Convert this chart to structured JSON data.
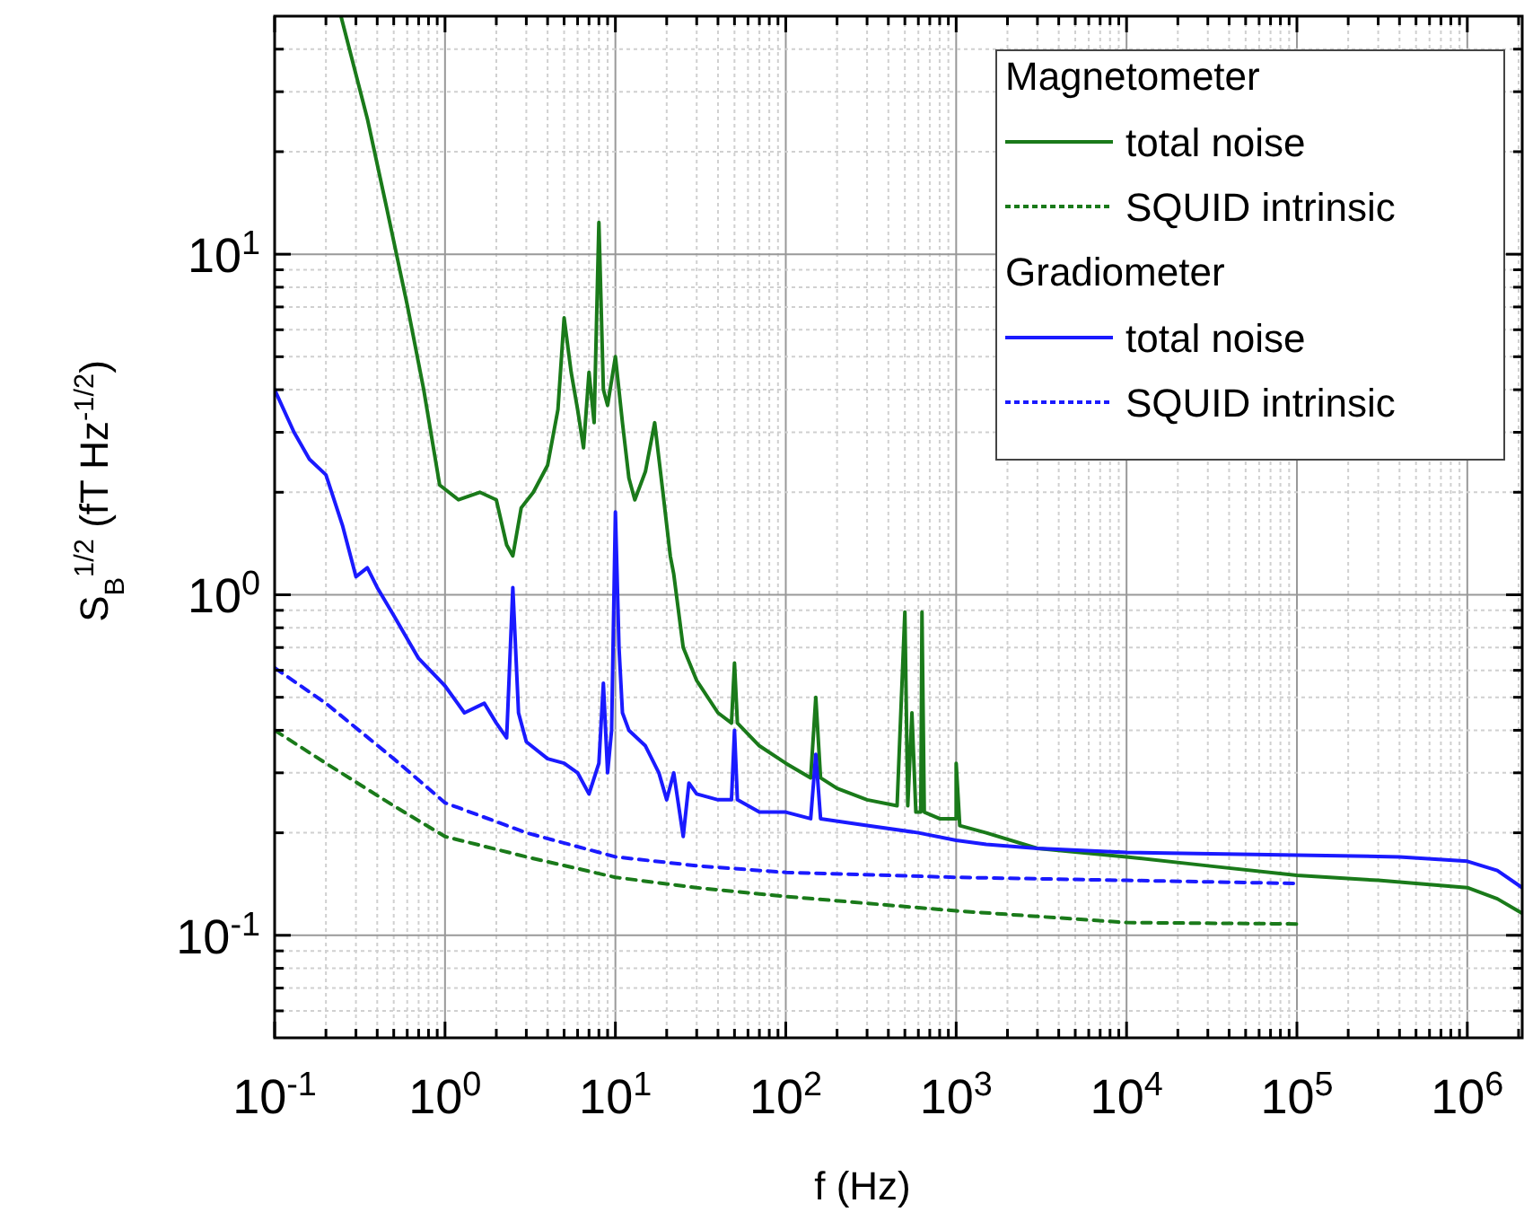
{
  "chart_data": {
    "type": "line",
    "xlabel": "f (Hz)",
    "ylabel": "S$_{B}$$^{1/2}$ (fT Hz$^{-1/2}$)",
    "log": "xy",
    "grid": true,
    "legend": "top right",
    "annotations": [
      "Magnetometer",
      "Gradiometer"
    ],
    "xlim": [
      0.1,
      2100000.0
    ],
    "ylim": [
      0.05,
      50
    ],
    "xticks": [
      {
        "value": 0.1,
        "label": "10$^{-1}$"
      },
      {
        "value": 0.2,
        "label": null
      },
      {
        "value": 0.3,
        "label": null
      },
      {
        "value": 0.4,
        "label": null
      },
      {
        "value": 0.5,
        "label": null
      },
      {
        "value": 0.6,
        "label": null
      },
      {
        "value": 0.7,
        "label": null
      },
      {
        "value": 0.8,
        "label": null
      },
      {
        "value": 0.9,
        "label": null
      },
      {
        "value": 1,
        "label": "10$^{0}$"
      },
      {
        "value": 2,
        "label": null
      },
      {
        "value": 3,
        "label": null
      },
      {
        "value": 4,
        "label": null
      },
      {
        "value": 5,
        "label": null
      },
      {
        "value": 6,
        "label": null
      },
      {
        "value": 7,
        "label": null
      },
      {
        "value": 8,
        "label": null
      },
      {
        "value": 9,
        "label": null
      },
      {
        "value": 10,
        "label": "10$^{1}$"
      },
      {
        "value": 20,
        "label": null
      },
      {
        "value": 30,
        "label": null
      },
      {
        "value": 40,
        "label": null
      },
      {
        "value": 50,
        "label": null
      },
      {
        "value": 60,
        "label": null
      },
      {
        "value": 70,
        "label": null
      },
      {
        "value": 80,
        "label": null
      },
      {
        "value": 90,
        "label": null
      },
      {
        "value": 100,
        "label": "10$^{2}$"
      },
      {
        "value": 200,
        "label": null
      },
      {
        "value": 300,
        "label": null
      },
      {
        "value": 400,
        "label": null
      },
      {
        "value": 500,
        "label": null
      },
      {
        "value": 600,
        "label": null
      },
      {
        "value": 700,
        "label": null
      },
      {
        "value": 800,
        "label": null
      },
      {
        "value": 900,
        "label": null
      },
      {
        "value": 1000,
        "label": "10$^{3}$"
      },
      {
        "value": 2000,
        "label": null
      },
      {
        "value": 3000,
        "label": null
      },
      {
        "value": 4000,
        "label": null
      },
      {
        "value": 5000,
        "label": null
      },
      {
        "value": 6000,
        "label": null
      },
      {
        "value": 7000,
        "label": null
      },
      {
        "value": 8000,
        "label": null
      },
      {
        "value": 9000,
        "label": null
      },
      {
        "value": 10000,
        "label": "10$^{4}$"
      },
      {
        "value": 20000,
        "label": null
      },
      {
        "value": 30000,
        "label": null
      },
      {
        "value": 40000,
        "label": null
      },
      {
        "value": 50000,
        "label": null
      },
      {
        "value": 60000,
        "label": null
      },
      {
        "value": 70000,
        "label": null
      },
      {
        "value": 80000,
        "label": null
      },
      {
        "value": 90000,
        "label": null
      },
      {
        "value": 100000,
        "label": "10$^{5}$"
      },
      {
        "value": 200000,
        "label": null
      },
      {
        "value": 300000,
        "label": null
      },
      {
        "value": 400000,
        "label": null
      },
      {
        "value": 500000,
        "label": null
      },
      {
        "value": 600000,
        "label": null
      },
      {
        "value": 700000,
        "label": null
      },
      {
        "value": 800000,
        "label": null
      },
      {
        "value": 900000,
        "label": null
      },
      {
        "value": 1000000,
        "label": "10$^{6}$"
      },
      {
        "value": 2000000,
        "label": null
      }
    ],
    "yticks": [
      {
        "value": 0.06,
        "label": null
      },
      {
        "value": 0.07,
        "label": null
      },
      {
        "value": 0.08,
        "label": null
      },
      {
        "value": 0.09,
        "label": null
      },
      {
        "value": 0.1,
        "label": "10$^{-1}$"
      },
      {
        "value": 0.2,
        "label": null
      },
      {
        "value": 0.3,
        "label": null
      },
      {
        "value": 0.4,
        "label": null
      },
      {
        "value": 0.5,
        "label": null
      },
      {
        "value": 0.6,
        "label": null
      },
      {
        "value": 0.7,
        "label": null
      },
      {
        "value": 0.8,
        "label": null
      },
      {
        "value": 0.9,
        "label": null
      },
      {
        "value": 1,
        "label": "10$^{0}$"
      },
      {
        "value": 2,
        "label": null
      },
      {
        "value": 3,
        "label": null
      },
      {
        "value": 4,
        "label": null
      },
      {
        "value": 5,
        "label": null
      },
      {
        "value": 6,
        "label": null
      },
      {
        "value": 7,
        "label": null
      },
      {
        "value": 8,
        "label": null
      },
      {
        "value": 9,
        "label": null
      },
      {
        "value": 10,
        "label": "10$^{1}$"
      },
      {
        "value": 20,
        "label": null
      },
      {
        "value": 30,
        "label": null
      },
      {
        "value": 40,
        "label": null
      }
    ],
    "series": [
      {
        "name": "total noise",
        "color": "#1a7a1a",
        "line_style": "solid",
        "x": [
          0.245,
          0.35,
          0.45,
          0.6,
          0.75,
          0.93,
          1.2,
          1.6,
          2,
          2.3,
          2.5,
          2.8,
          3.3,
          4,
          4.6,
          5,
          5.5,
          6,
          6.5,
          7,
          7.5,
          8,
          8.5,
          9,
          10,
          11,
          12,
          13,
          15,
          17,
          19,
          21,
          22,
          25,
          30,
          40,
          48,
          50,
          52,
          70,
          100,
          140,
          150,
          160,
          200,
          300,
          450,
          500,
          520,
          550,
          580,
          620,
          630,
          650,
          800,
          1000,
          1000,
          1050,
          1500,
          3000,
          10000,
          30000,
          100000,
          300000,
          1000000,
          1500000,
          2100000
        ],
        "values": [
          50,
          25,
          14,
          7.1,
          4,
          2.1,
          1.9,
          2,
          1.9,
          1.4,
          1.3,
          1.8,
          2,
          2.4,
          3.5,
          6.5,
          4.5,
          3.5,
          2.7,
          4.5,
          3.2,
          12.4,
          4,
          3.6,
          5,
          3.2,
          2.2,
          1.9,
          2.3,
          3.2,
          2,
          1.3,
          1.15,
          0.7,
          0.56,
          0.45,
          0.42,
          0.63,
          0.42,
          0.36,
          0.32,
          0.29,
          0.5,
          0.29,
          0.27,
          0.25,
          0.24,
          0.89,
          0.24,
          0.45,
          0.23,
          0.23,
          0.89,
          0.23,
          0.22,
          0.22,
          0.32,
          0.21,
          0.2,
          0.18,
          0.17,
          0.16,
          0.15,
          0.145,
          0.138,
          0.128,
          0.116
        ]
      },
      {
        "name": "SQUID intrinsic",
        "color": "#1a7a1a",
        "line_style": "dashed",
        "x": [
          0.1,
          0.2,
          0.5,
          1,
          3,
          10,
          30,
          100,
          1000,
          10000,
          100000
        ],
        "values": [
          0.4,
          0.32,
          0.24,
          0.195,
          0.17,
          0.148,
          0.138,
          0.13,
          0.118,
          0.109,
          0.108
        ]
      },
      {
        "name": "total noise",
        "color": "#1a1aff",
        "line_style": "solid",
        "x": [
          0.1,
          0.13,
          0.16,
          0.2,
          0.25,
          0.3,
          0.35,
          0.4,
          0.5,
          0.7,
          1,
          1.3,
          1.7,
          2,
          2.3,
          2.5,
          2.7,
          3,
          4,
          5,
          6,
          7,
          8,
          8.5,
          9,
          9.5,
          10,
          10.5,
          11,
          12,
          15,
          18,
          20,
          22,
          25,
          27,
          30,
          40,
          48,
          50,
          52,
          70,
          100,
          140,
          150,
          160,
          300,
          600,
          1000,
          1500,
          3000,
          10000,
          100000,
          400000,
          1000000,
          1500000,
          2100000
        ],
        "values": [
          4,
          3,
          2.5,
          2.25,
          1.6,
          1.13,
          1.2,
          1.05,
          0.87,
          0.65,
          0.54,
          0.45,
          0.48,
          0.42,
          0.38,
          1.05,
          0.45,
          0.37,
          0.33,
          0.32,
          0.3,
          0.26,
          0.32,
          0.55,
          0.3,
          0.4,
          1.75,
          0.7,
          0.45,
          0.4,
          0.36,
          0.3,
          0.25,
          0.3,
          0.195,
          0.28,
          0.26,
          0.25,
          0.25,
          0.4,
          0.25,
          0.23,
          0.23,
          0.22,
          0.34,
          0.22,
          0.21,
          0.2,
          0.19,
          0.185,
          0.18,
          0.175,
          0.172,
          0.17,
          0.165,
          0.155,
          0.138
        ]
      },
      {
        "name": "SQUID intrinsic",
        "color": "#1a1aff",
        "line_style": "dashed",
        "x": [
          0.1,
          0.2,
          0.5,
          1,
          3,
          10,
          30,
          100,
          1000,
          10000,
          100000
        ],
        "values": [
          0.61,
          0.48,
          0.33,
          0.245,
          0.2,
          0.17,
          0.16,
          0.153,
          0.148,
          0.145,
          0.142
        ]
      }
    ]
  }
}
